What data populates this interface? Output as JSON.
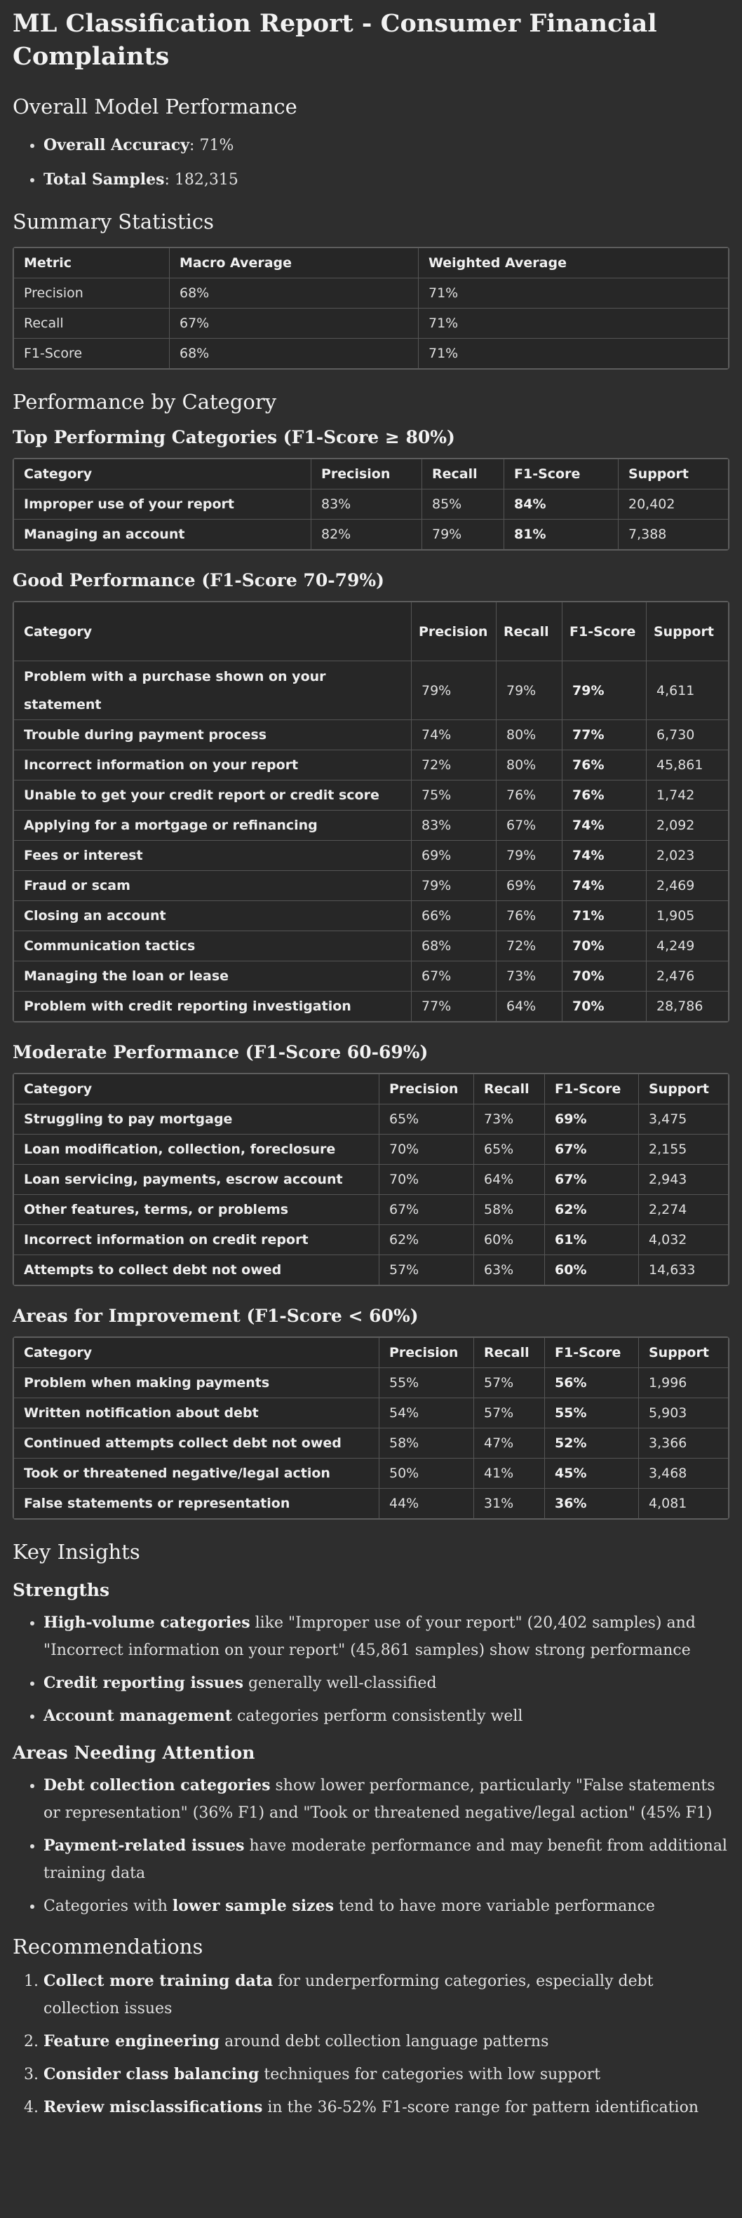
{
  "title": "ML Classification Report - Consumer Financial Complaints",
  "overall": {
    "heading": "Overall Model Performance",
    "items": [
      {
        "label": "Overall Accuracy",
        "value": ": 71%"
      },
      {
        "label": "Total Samples",
        "value": ": 182,315"
      }
    ]
  },
  "summary": {
    "heading": "Summary Statistics",
    "headers": [
      "Metric",
      "Macro Average",
      "Weighted Average"
    ],
    "rows": [
      [
        "Precision",
        "68%",
        "71%"
      ],
      [
        "Recall",
        "67%",
        "71%"
      ],
      [
        "F1-Score",
        "68%",
        "71%"
      ]
    ]
  },
  "performance": {
    "heading": "Performance by Category",
    "headers": [
      "Category",
      "Precision",
      "Recall",
      "F1-Score",
      "Support"
    ],
    "groups": [
      {
        "heading": "Top Performing Categories (F1-Score ≥ 80%)",
        "rows": [
          [
            "Improper use of your report",
            "83%",
            "85%",
            "84%",
            "20,402"
          ],
          [
            "Managing an account",
            "82%",
            "79%",
            "81%",
            "7,388"
          ]
        ]
      },
      {
        "heading": "Good Performance (F1-Score 70-79%)",
        "rows": [
          [
            "Problem with a purchase shown on your statement",
            "79%",
            "79%",
            "79%",
            "4,611"
          ],
          [
            "Trouble during payment process",
            "74%",
            "80%",
            "77%",
            "6,730"
          ],
          [
            "Incorrect information on your report",
            "72%",
            "80%",
            "76%",
            "45,861"
          ],
          [
            "Unable to get your credit report or credit score",
            "75%",
            "76%",
            "76%",
            "1,742"
          ],
          [
            "Applying for a mortgage or refinancing",
            "83%",
            "67%",
            "74%",
            "2,092"
          ],
          [
            "Fees or interest",
            "69%",
            "79%",
            "74%",
            "2,023"
          ],
          [
            "Fraud or scam",
            "79%",
            "69%",
            "74%",
            "2,469"
          ],
          [
            "Closing an account",
            "66%",
            "76%",
            "71%",
            "1,905"
          ],
          [
            "Communication tactics",
            "68%",
            "72%",
            "70%",
            "4,249"
          ],
          [
            "Managing the loan or lease",
            "67%",
            "73%",
            "70%",
            "2,476"
          ],
          [
            "Problem with credit reporting investigation",
            "77%",
            "64%",
            "70%",
            "28,786"
          ]
        ]
      },
      {
        "heading": "Moderate Performance (F1-Score 60-69%)",
        "rows": [
          [
            "Struggling to pay mortgage",
            "65%",
            "73%",
            "69%",
            "3,475"
          ],
          [
            "Loan modification, collection, foreclosure",
            "70%",
            "65%",
            "67%",
            "2,155"
          ],
          [
            "Loan servicing, payments, escrow account",
            "70%",
            "64%",
            "67%",
            "2,943"
          ],
          [
            "Other features, terms, or problems",
            "67%",
            "58%",
            "62%",
            "2,274"
          ],
          [
            "Incorrect information on credit report",
            "62%",
            "60%",
            "61%",
            "4,032"
          ],
          [
            "Attempts to collect debt not owed",
            "57%",
            "63%",
            "60%",
            "14,633"
          ]
        ]
      },
      {
        "heading": "Areas for Improvement (F1-Score < 60%)",
        "rows": [
          [
            "Problem when making payments",
            "55%",
            "57%",
            "56%",
            "1,996"
          ],
          [
            "Written notification about debt",
            "54%",
            "57%",
            "55%",
            "5,903"
          ],
          [
            "Continued attempts collect debt not owed",
            "58%",
            "47%",
            "52%",
            "3,366"
          ],
          [
            "Took or threatened negative/legal action",
            "50%",
            "41%",
            "45%",
            "3,468"
          ],
          [
            "False statements or representation",
            "44%",
            "31%",
            "36%",
            "4,081"
          ]
        ]
      }
    ]
  },
  "insights": {
    "heading": "Key Insights",
    "strengths": {
      "heading": "Strengths",
      "items": [
        {
          "bold": "High-volume categories",
          "text": " like \"Improper use of your report\" (20,402 samples) and \"Incorrect information on your report\" (45,861 samples) show strong performance"
        },
        {
          "bold": "Credit reporting issues",
          "text": " generally well-classified"
        },
        {
          "bold": "Account management",
          "text": " categories perform consistently well"
        }
      ]
    },
    "attention": {
      "heading": "Areas Needing Attention",
      "items": [
        {
          "pre": "",
          "bold": "Debt collection categories",
          "text": " show lower performance, particularly \"False statements or representation\" (36% F1) and \"Took or threatened negative/legal action\" (45% F1)"
        },
        {
          "pre": "",
          "bold": "Payment-related issues",
          "text": " have moderate performance and may benefit from additional training data"
        },
        {
          "pre": "Categories with ",
          "bold": "lower sample sizes",
          "text": " tend to have more variable performance"
        }
      ]
    }
  },
  "recommendations": {
    "heading": "Recommendations",
    "items": [
      {
        "bold": "Collect more training data",
        "text": " for underperforming categories, especially debt collection issues"
      },
      {
        "bold": "Feature engineering",
        "text": " around debt collection language patterns"
      },
      {
        "bold": "Consider class balancing",
        "text": " techniques for categories with low support"
      },
      {
        "bold": "Review misclassifications",
        "text": " in the 36-52% F1-score range for pattern identification"
      }
    ]
  }
}
